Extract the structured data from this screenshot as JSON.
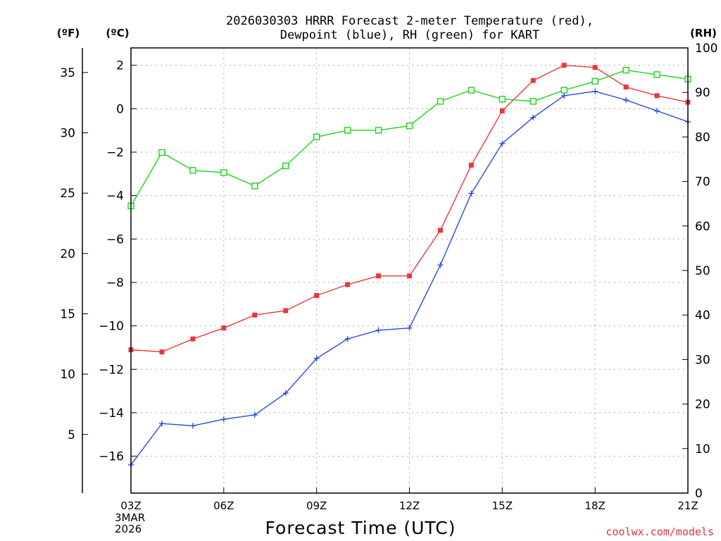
{
  "chart_data": {
    "type": "line",
    "title_line1": "2026030303 HRRR Forecast 2-meter Temperature (red),",
    "title_line2": "Dewpoint (blue), RH (green) for KART",
    "unit_f": "(ºF)",
    "unit_c": "(ºC)",
    "unit_rh": "(RH)",
    "xlabel": "Forecast Time (UTC)",
    "date_line1": "3MAR",
    "date_line2": "2026",
    "credit": "coolwx.com/models",
    "x_ticks": [
      {
        "hour": 0,
        "label": "03Z"
      },
      {
        "hour": 3,
        "label": "06Z"
      },
      {
        "hour": 6,
        "label": "09Z"
      },
      {
        "hour": 9,
        "label": "12Z"
      },
      {
        "hour": 12,
        "label": "15Z"
      },
      {
        "hour": 15,
        "label": "18Z"
      },
      {
        "hour": 18,
        "label": "21Z"
      }
    ],
    "x_range": [
      0,
      18
    ],
    "celsius_range": [
      -17.7,
      2.8
    ],
    "celsius_ticks": [
      -16,
      -14,
      -12,
      -10,
      -8,
      -6,
      -4,
      -2,
      0,
      2
    ],
    "fahrenheit_ticks": [
      5,
      10,
      15,
      20,
      25,
      30,
      35
    ],
    "rh_range": [
      0,
      100
    ],
    "rh_ticks": [
      0,
      10,
      20,
      30,
      40,
      50,
      60,
      70,
      80,
      90,
      100
    ],
    "hours": [
      0,
      1,
      2,
      3,
      4,
      5,
      6,
      7,
      8,
      9,
      10,
      11,
      12,
      13,
      14,
      15,
      16,
      17,
      18
    ],
    "series": [
      {
        "name": "Temperature",
        "unit": "C",
        "color": "#e8383c",
        "marker": "filled-square",
        "values": [
          -11.1,
          -11.2,
          -10.6,
          -10.1,
          -9.5,
          -9.3,
          -8.6,
          -8.1,
          -7.7,
          -7.7,
          -5.6,
          -2.6,
          -0.1,
          1.3,
          2.0,
          1.9,
          1.0,
          0.6,
          0.3
        ]
      },
      {
        "name": "Dewpoint",
        "unit": "C",
        "color": "#2a4ae0",
        "marker": "plus",
        "values": [
          -16.4,
          -14.5,
          -14.6,
          -14.3,
          -14.1,
          -13.1,
          -11.5,
          -10.6,
          -10.2,
          -10.1,
          -7.2,
          -3.9,
          -1.6,
          -0.4,
          0.6,
          0.8,
          0.4,
          -0.1,
          -0.6
        ]
      },
      {
        "name": "RH",
        "unit": "%",
        "color": "#20d020",
        "marker": "open-square",
        "values": [
          64.5,
          76.5,
          72.5,
          72,
          69,
          73.5,
          80,
          81.5,
          81.5,
          82.5,
          88,
          90.5,
          88.5,
          88,
          90.5,
          92.5,
          95,
          94,
          93
        ]
      }
    ]
  }
}
